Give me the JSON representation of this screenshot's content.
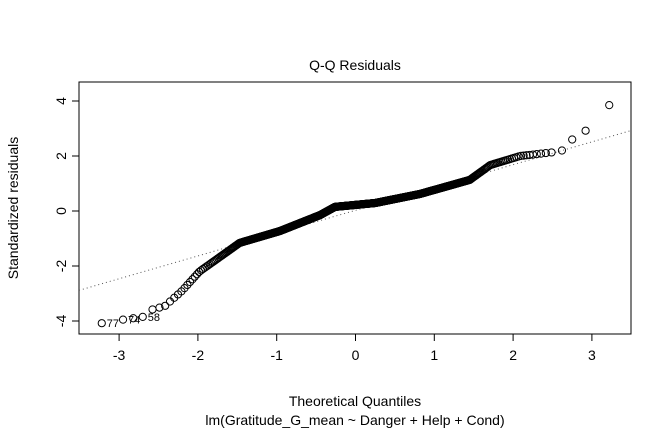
{
  "chart_data": {
    "type": "scatter",
    "title": "Q-Q Residuals",
    "xlabel": "Theoretical Quantiles",
    "subtitle": "lm(Gratitude_G_mean ~ Danger + Help + Cond)",
    "ylabel": "Standardized residuals",
    "xlim": [
      -3.5,
      3.5
    ],
    "ylim": [
      -4.3,
      4.7
    ],
    "xticks": [
      -3,
      -2,
      -1,
      0,
      1,
      2,
      3
    ],
    "yticks": [
      -4,
      -2,
      0,
      2,
      4
    ],
    "grid": false,
    "n_points": 700,
    "body_curve": [
      [
        -2.6,
        -3.6
      ],
      [
        -2.42,
        -3.46
      ],
      [
        -2.2,
        -2.9
      ],
      [
        -1.98,
        -2.2
      ],
      [
        -1.47,
        -1.16
      ],
      [
        -0.96,
        -0.73
      ],
      [
        -0.45,
        -0.15
      ],
      [
        -0.26,
        0.15
      ],
      [
        0.25,
        0.29
      ],
      [
        0.82,
        0.62
      ],
      [
        1.45,
        1.13
      ],
      [
        1.71,
        1.67
      ],
      [
        2.09,
        2.0
      ],
      [
        2.55,
        2.15
      ]
    ],
    "extreme_points": [
      {
        "x": -3.22,
        "y": -4.08,
        "label": "77"
      },
      {
        "x": -2.95,
        "y": -3.95,
        "label": "74"
      },
      {
        "x": -2.82,
        "y": -3.9,
        "label": ""
      },
      {
        "x": -2.7,
        "y": -3.85,
        "label": "58"
      },
      {
        "x": 2.62,
        "y": 2.2,
        "label": ""
      },
      {
        "x": 2.75,
        "y": 2.6,
        "label": ""
      },
      {
        "x": 2.92,
        "y": 2.92,
        "label": ""
      },
      {
        "x": 3.22,
        "y": 3.85,
        "label": ""
      }
    ],
    "reference_line": {
      "slope": 0.83,
      "intercept": 0.02
    }
  }
}
